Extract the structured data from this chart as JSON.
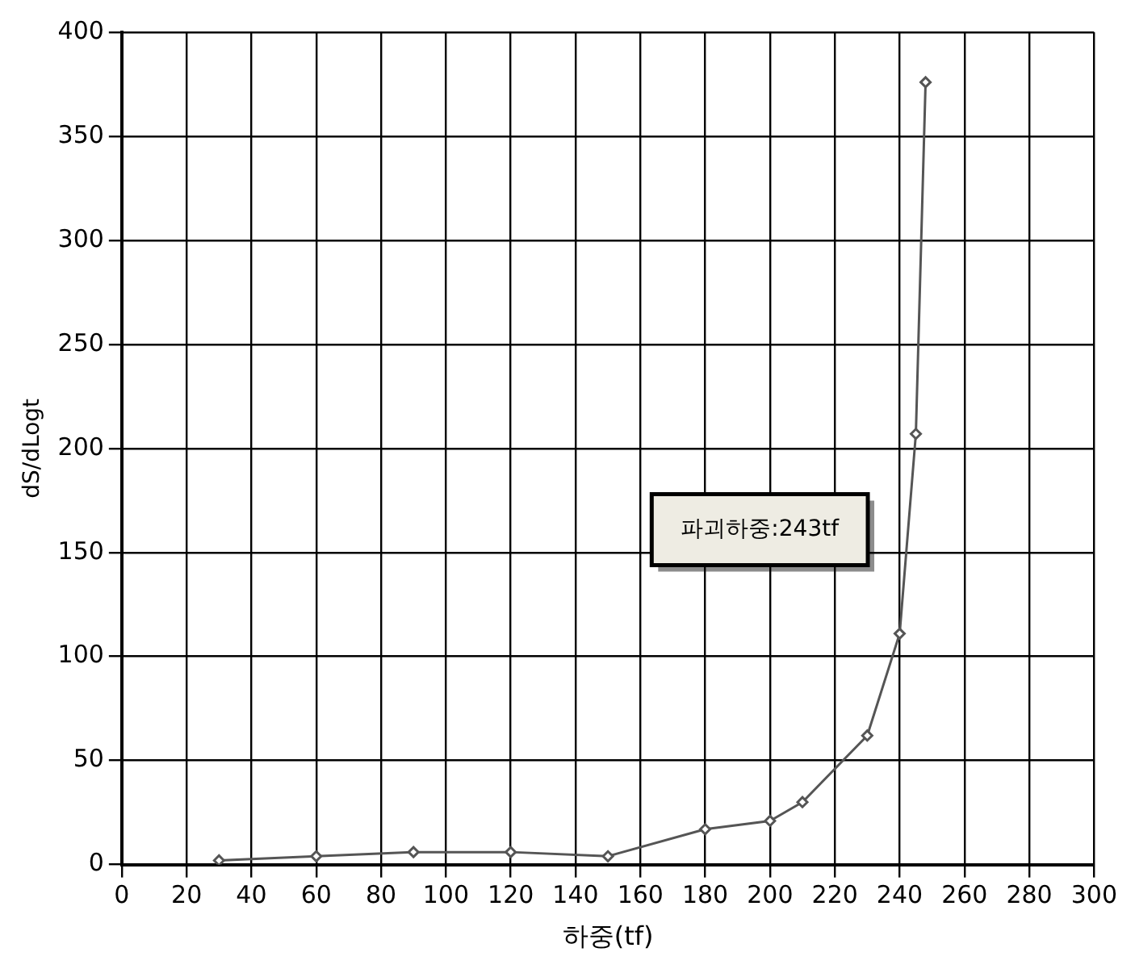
{
  "chart_data": {
    "type": "line",
    "xlabel": "하중(tf)",
    "ylabel": "dS/dLogt",
    "x": [
      30,
      60,
      90,
      120,
      150,
      180,
      200,
      210,
      230,
      240,
      245,
      248
    ],
    "series": [
      {
        "color": "#555555",
        "values": [
          2,
          4,
          6,
          6,
          4,
          17,
          21,
          30,
          62,
          111,
          207,
          376
        ]
      }
    ],
    "xlim": [
      0,
      300
    ],
    "xticks": [
      0,
      20,
      40,
      60,
      80,
      100,
      120,
      140,
      160,
      180,
      200,
      220,
      240,
      260,
      280,
      300
    ],
    "ylim": [
      0,
      400
    ],
    "yticks": [
      0,
      50,
      100,
      150,
      200,
      250,
      300,
      350,
      400
    ],
    "grid": true,
    "legend": false,
    "marker": "diamond",
    "line_style": "solid",
    "annotations": [
      "파괴하중:243tf"
    ]
  }
}
